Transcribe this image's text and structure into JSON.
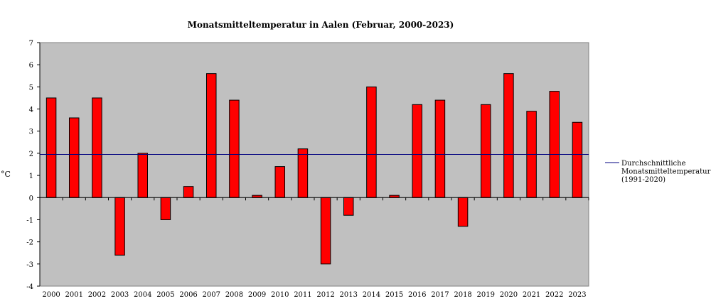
{
  "chart_data": {
    "type": "bar",
    "title": "Monatsmitteltemperatur in Aalen (Februar, 2000-2023)",
    "xlabel": "",
    "ylabel": "°C",
    "categories": [
      "2000",
      "2001",
      "2002",
      "2003",
      "2004",
      "2005",
      "2006",
      "2007",
      "2008",
      "2009",
      "2010",
      "2011",
      "2012",
      "2013",
      "2014",
      "2015",
      "2016",
      "2017",
      "2018",
      "2019",
      "2020",
      "2021",
      "2022",
      "2023"
    ],
    "values": [
      4.5,
      3.6,
      4.5,
      -2.6,
      2.0,
      -1.0,
      0.5,
      5.6,
      4.4,
      0.1,
      1.4,
      2.2,
      -3.0,
      -0.8,
      5.0,
      0.1,
      4.2,
      4.4,
      -1.3,
      4.2,
      5.6,
      3.9,
      4.8,
      3.4
    ],
    "ylim": [
      -4,
      7
    ],
    "yticks": [
      -4,
      -3,
      -2,
      -1,
      0,
      1,
      2,
      3,
      4,
      5,
      6,
      7
    ],
    "grid": false,
    "reference_line": {
      "value": 1.95,
      "label_lines": [
        "Durchschnittliche",
        "Monatsmitteltemperatur",
        "(1991-2020)"
      ]
    },
    "legend_position": "right",
    "colors": {
      "bar": "#ff0000",
      "bar_edge": "#000000",
      "plot_background": "#c0c0c0",
      "reference_line": "#000080"
    }
  }
}
